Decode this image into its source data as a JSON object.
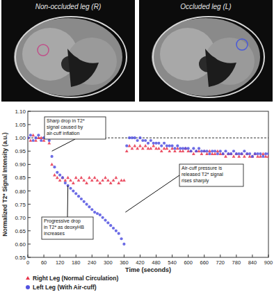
{
  "images": [
    {
      "label": "Non-occluded leg (R)"
    },
    {
      "label": "Occluded leg (L)"
    }
  ],
  "chart_data": {
    "type": "scatter",
    "x_label": "Time (seconds)",
    "y_label": "Normalized T2* Signal Intensity (a.u.)",
    "xlim": [
      0,
      900
    ],
    "xticks": [
      0,
      60,
      120,
      180,
      240,
      300,
      360,
      420,
      480,
      540,
      600,
      660,
      720,
      780,
      840,
      900
    ],
    "ylim": [
      0.55,
      1.1
    ],
    "yticks": [
      0.55,
      {
        "value": 0.6,
        "label": "0.60"
      },
      0.65,
      {
        "value": 0.7,
        "label": "0.70"
      },
      0.75,
      {
        "value": 0.8,
        "label": "0.80"
      },
      0.85,
      {
        "value": 0.9,
        "label": "0.90"
      },
      0.95,
      {
        "value": 1,
        "label": "1.00"
      },
      1.05,
      {
        "value": 1.1,
        "label": "1.10"
      }
    ],
    "grid": false,
    "legend": "bottom",
    "hline": 1,
    "annotations": [
      {
        "text": "Sharp drop in T2* signal caused by air-cuff inflation",
        "x": 90,
        "y": 0.95
      },
      {
        "text": "Progressive drop in T2* as deoxyHB increases",
        "x": 150,
        "y": 0.82
      },
      {
        "text": "Air-cuff pressure is released T2* signal rises sharply",
        "x": 365,
        "y": 0.72
      }
    ],
    "x": [
      0,
      10,
      20,
      30,
      40,
      50,
      60,
      70,
      80,
      90,
      100,
      110,
      120,
      130,
      140,
      150,
      160,
      170,
      180,
      190,
      200,
      210,
      220,
      230,
      240,
      250,
      260,
      270,
      280,
      290,
      300,
      310,
      320,
      330,
      340,
      350,
      360,
      370,
      380,
      390,
      400,
      410,
      420,
      430,
      440,
      450,
      460,
      470,
      480,
      490,
      500,
      510,
      520,
      530,
      540,
      550,
      560,
      570,
      580,
      590,
      600,
      610,
      620,
      630,
      640,
      650,
      660,
      670,
      680,
      690,
      700,
      710,
      720,
      730,
      740,
      750,
      760,
      770,
      780,
      790,
      800,
      810,
      820,
      830,
      840,
      850,
      860,
      870,
      880,
      890,
      900
    ],
    "series": [
      {
        "name": "Right Leg (Normal Circulation)",
        "color": "#e8334a",
        "marker": "triangle",
        "values": [
          1.0,
          0.99,
          1.01,
          0.99,
          1.0,
          1.0,
          0.99,
          1.0,
          0.98,
          0.9,
          0.86,
          0.85,
          0.84,
          0.85,
          0.84,
          0.85,
          0.84,
          0.83,
          0.85,
          0.84,
          0.85,
          0.84,
          0.83,
          0.85,
          0.84,
          0.85,
          0.84,
          0.83,
          0.84,
          0.85,
          0.84,
          0.83,
          0.84,
          0.85,
          0.83,
          0.84,
          0.84,
          0.95,
          0.97,
          0.96,
          0.97,
          0.96,
          0.97,
          0.96,
          0.97,
          0.96,
          0.96,
          0.97,
          0.96,
          0.96,
          0.95,
          0.96,
          0.96,
          0.95,
          0.96,
          0.95,
          0.96,
          0.95,
          0.95,
          0.96,
          0.95,
          0.95,
          0.94,
          0.95,
          0.95,
          0.94,
          0.95,
          0.94,
          0.95,
          0.94,
          0.94,
          0.95,
          0.94,
          0.94,
          0.93,
          0.94,
          0.94,
          0.93,
          0.94,
          0.93,
          0.94,
          0.93,
          0.94,
          0.93,
          0.93,
          0.94,
          0.93,
          0.93,
          0.94,
          0.93,
          0.93
        ]
      },
      {
        "name": "Left Leg (With Air-cuff)",
        "color": "#5252e0",
        "marker": "circle",
        "values": [
          1.0,
          1.01,
          0.99,
          1.0,
          1.01,
          0.99,
          1.0,
          1.0,
          0.99,
          0.93,
          0.89,
          0.87,
          0.86,
          0.85,
          0.83,
          0.82,
          0.81,
          0.8,
          0.79,
          0.78,
          0.77,
          0.76,
          0.75,
          0.74,
          0.73,
          0.72,
          0.715,
          0.71,
          0.7,
          0.69,
          0.68,
          0.67,
          0.66,
          0.65,
          0.64,
          0.62,
          0.6,
          0.97,
          1.0,
          1.0,
          1.0,
          0.99,
          1.0,
          0.99,
          0.99,
          0.98,
          0.99,
          0.98,
          0.98,
          0.98,
          0.97,
          0.98,
          0.97,
          0.97,
          0.97,
          0.96,
          0.97,
          0.96,
          0.96,
          0.96,
          0.96,
          0.95,
          0.96,
          0.95,
          0.96,
          0.95,
          0.95,
          0.95,
          0.94,
          0.95,
          0.95,
          0.94,
          0.95,
          0.94,
          0.95,
          0.94,
          0.94,
          0.95,
          0.94,
          0.94,
          0.94,
          0.95,
          0.94,
          0.94,
          0.93,
          0.94,
          0.94,
          0.94,
          0.93,
          0.94,
          0.94
        ]
      }
    ]
  }
}
